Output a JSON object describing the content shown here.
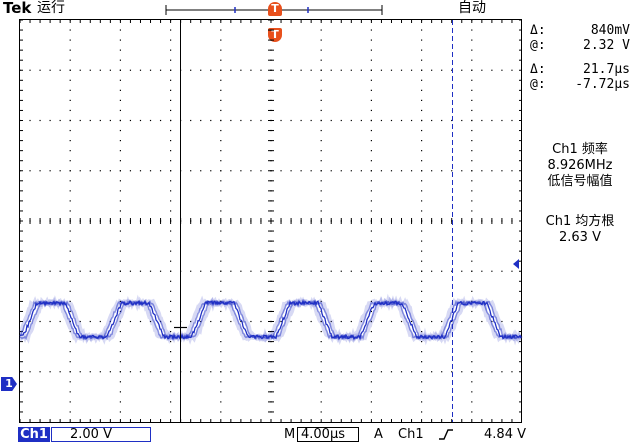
{
  "header": {
    "brand": "Tek",
    "run_state": "运行",
    "trigger_mode": "自动"
  },
  "markers": {
    "trigger_top": "T",
    "trigger_top_sub": "T",
    "channel_ground": "1"
  },
  "cursor_readout": {
    "amp_delta_symbol": "Δ:",
    "amp_delta_value": "840mV",
    "amp_at_symbol": "@:",
    "amp_at_value": "2.32 V",
    "time_delta_symbol": "Δ:",
    "time_delta_value": "21.7µs",
    "time_at_symbol": "@:",
    "time_at_value": "-7.72µs"
  },
  "measurements": [
    {
      "title": "Ch1 频率",
      "value": "8.926MHz",
      "note": "低信号幅值"
    },
    {
      "title": "Ch1 均方根",
      "value": "2.63 V",
      "note": ""
    }
  ],
  "bottom_bar": {
    "channel_label": "Ch1",
    "volts_per_div": "2.00 V",
    "time_prefix": "M",
    "time_per_div": "4.00µs",
    "trigger_prefix": "A",
    "trigger_channel": "Ch1",
    "trigger_slope_icon": "rising-edge-icon",
    "trigger_level": "4.84 V"
  },
  "colors": {
    "trace": "#1f2fc4",
    "trigger_marker": "#e8501c",
    "graticule": "#000000"
  }
}
